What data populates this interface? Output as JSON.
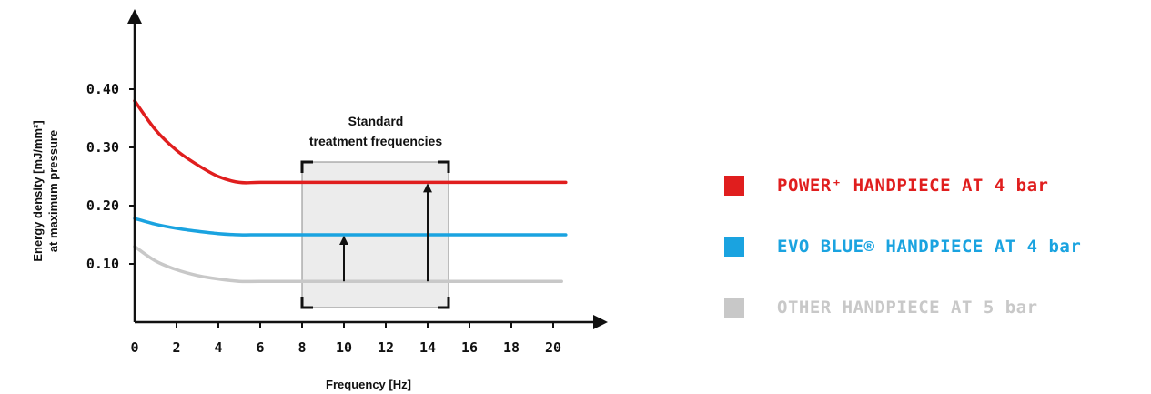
{
  "chart_data": {
    "type": "line",
    "xlabel": "Frequency [Hz]",
    "ylabel_line1": "Energy density [mJ/mm²]",
    "ylabel_line2": "at maximum pressure",
    "x_ticks": [
      "0",
      "2",
      "4",
      "6",
      "8",
      "10",
      "12",
      "14",
      "16",
      "18",
      "20"
    ],
    "y_ticks": [
      "0.10",
      "0.20",
      "0.30",
      "0.40"
    ],
    "xlim": [
      0,
      20.6
    ],
    "ylim": [
      0,
      0.4
    ],
    "grid": false,
    "legend_position": "right",
    "annotation_line1": "Standard",
    "annotation_line2": "treatment frequencies",
    "highlight_range": [
      8,
      15
    ],
    "arrows": [
      {
        "x": 10,
        "from_y": 0.07,
        "to_y": 0.15
      },
      {
        "x": 14,
        "from_y": 0.07,
        "to_y": 0.24
      }
    ],
    "series": [
      {
        "name": "POWER⁺ HANDPIECE AT 4 bar",
        "color": "#e01e1e",
        "x": [
          0,
          1,
          2,
          3,
          4,
          5,
          6,
          8,
          10,
          12,
          14,
          16,
          18,
          20.6
        ],
        "values": [
          0.38,
          0.33,
          0.295,
          0.27,
          0.25,
          0.24,
          0.24,
          0.24,
          0.24,
          0.24,
          0.24,
          0.24,
          0.24,
          0.24
        ]
      },
      {
        "name": "EVO BLUE® HANDPIECE AT 4 bar",
        "color": "#1aa3e0",
        "x": [
          0,
          1,
          2,
          3,
          4,
          5,
          6,
          8,
          10,
          12,
          14,
          16,
          18,
          20.6
        ],
        "values": [
          0.178,
          0.168,
          0.161,
          0.156,
          0.152,
          0.15,
          0.15,
          0.15,
          0.15,
          0.15,
          0.15,
          0.15,
          0.15,
          0.15
        ]
      },
      {
        "name": "OTHER HANDPIECE AT 5 bar",
        "color": "#c8c8c8",
        "x": [
          0,
          1,
          2,
          3,
          4,
          5,
          6,
          8,
          10,
          12,
          14,
          16,
          18,
          20.4
        ],
        "values": [
          0.13,
          0.105,
          0.09,
          0.08,
          0.074,
          0.07,
          0.07,
          0.07,
          0.07,
          0.07,
          0.07,
          0.07,
          0.07,
          0.07
        ]
      }
    ]
  },
  "legend": {
    "items": [
      {
        "label": "POWER⁺ HANDPIECE AT 4 bar",
        "color": "#e01e1e"
      },
      {
        "label": "EVO BLUE® HANDPIECE AT 4 bar",
        "color": "#1aa3e0"
      },
      {
        "label": "OTHER HANDPIECE AT 5 bar",
        "color": "#c8c8c8"
      }
    ]
  }
}
